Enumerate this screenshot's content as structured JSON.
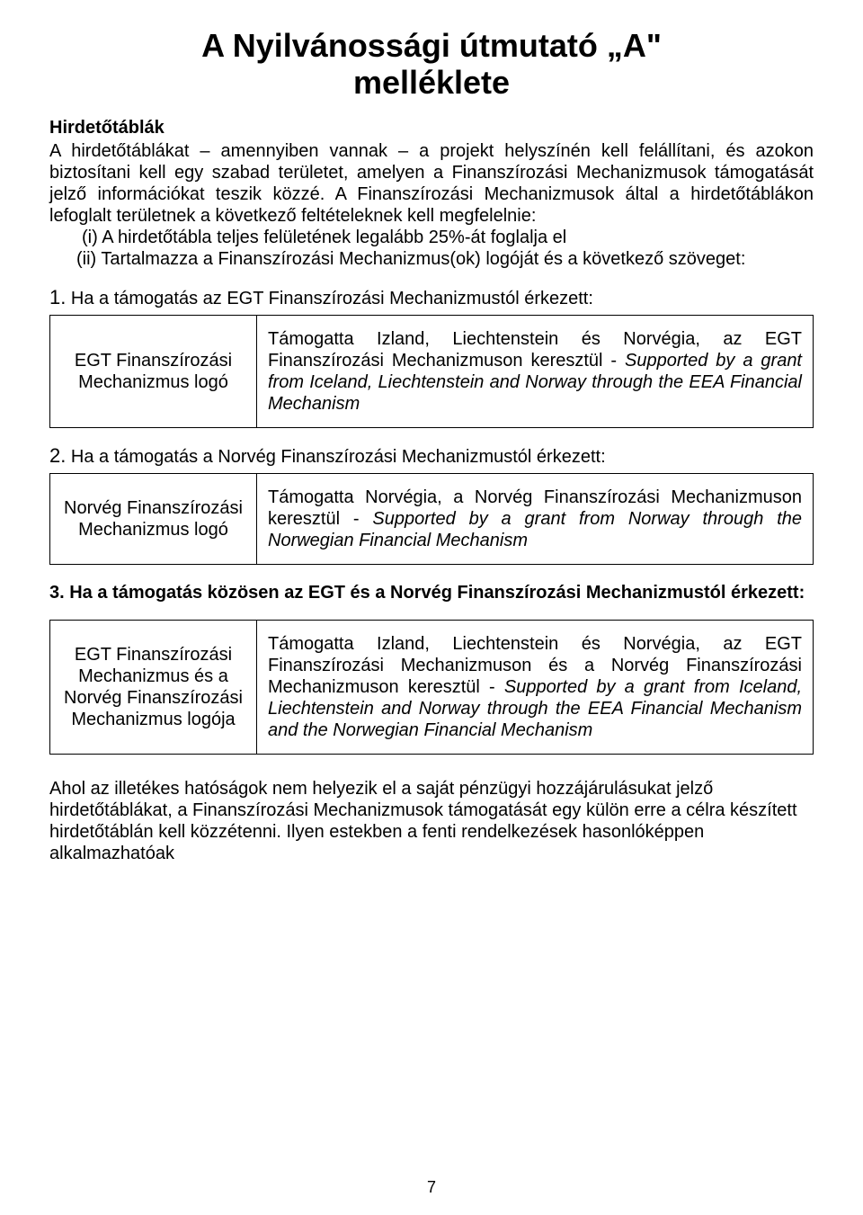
{
  "title_line1": "A Nyilvánossági útmutató „A\"",
  "title_line2": "melléklete",
  "sub_heading": "Hirdetőtáblák",
  "intro_para": "A hirdetőtáblákat – amennyiben vannak – a projekt helyszínén kell felállítani, és azokon biztosítani kell egy szabad területet, amelyen a Finanszírozási Mechanizmusok támogatását jelző információkat teszik közzé. A Finanszírozási Mechanizmusok által a hirdetőtáblákon lefoglalt területnek a következő feltételeknek kell megfelelnie:",
  "item_i": "(i) A hirdetőtábla teljes felületének legalább 25%-át foglalja el",
  "item_ii": "(ii) Tartalmazza a Finanszírozási Mechanizmus(ok) logóját és a következő szöveget:",
  "sec1_num": "1.",
  "sec1_label": " Ha a támogatás az EGT Finanszírozási Mechanizmustól érkezett:",
  "sec1_logo": "EGT Finanszírozási Mechanizmus logó",
  "sec1_text_hu": "Támogatta Izland, Liechtenstein és Norvégia, az EGT Finanszírozási Mechanizmuson keresztül - ",
  "sec1_text_en": "Supported by a grant from Iceland, Liechtenstein and Norway through the EEA Financial Mechanism",
  "sec2_num": "2.",
  "sec2_label": " Ha a támogatás a Norvég Finanszírozási Mechanizmustól érkezett:",
  "sec2_logo": "Norvég Finanszírozási Mechanizmus logó",
  "sec2_text_hu": "Támogatta Norvégia, a Norvég Finanszírozási Mechanizmuson keresztül - ",
  "sec2_text_en": "Supported by a grant from Norway through the Norwegian Financial Mechanism",
  "sec3_heading": "3. Ha a támogatás közösen az EGT és a Norvég Finanszírozási Mechanizmustól érkezett:",
  "sec3_logo": "EGT Finanszírozási Mechanizmus és a Norvég Finanszírozási Mechanizmus logója",
  "sec3_text_hu": "Támogatta Izland, Liechtenstein és Norvégia, az EGT Finanszírozási Mechanizmuson és a Norvég Finanszírozási Mechanizmuson keresztül - ",
  "sec3_text_en": "Supported by a grant from Iceland, Liechtenstein and Norway through the EEA Financial Mechanism and the Norwegian Financial Mechanism",
  "footer_para": "Ahol az illetékes hatóságok nem helyezik el a saját pénzügyi hozzájárulásukat jelző hirdetőtáblákat, a Finanszírozási Mechanizmusok támogatását egy külön erre a célra készített hirdetőtáblán kell közzétenni. Ilyen estekben a fenti rendelkezések hasonlóképpen alkalmazhatóak",
  "page_number": "7"
}
